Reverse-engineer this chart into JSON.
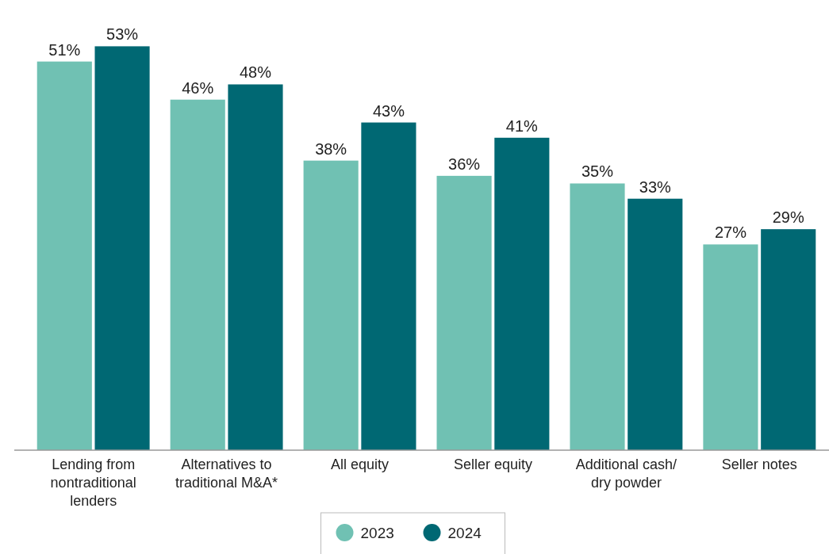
{
  "chart_data": {
    "type": "bar",
    "categories": [
      "Lending from nontraditional lenders",
      "Alternatives to traditional M&A*",
      "All equity",
      "Seller equity",
      "Additional cash/ dry powder",
      "Seller notes"
    ],
    "series": [
      {
        "name": "2023",
        "color": "#70c1b3",
        "values": [
          51,
          46,
          38,
          36,
          35,
          27
        ],
        "value_labels": [
          "51%",
          "46%",
          "38%",
          "36%",
          "35%",
          "27%"
        ]
      },
      {
        "name": "2024",
        "color": "#006873",
        "values": [
          53,
          48,
          43,
          41,
          33,
          29
        ],
        "value_labels": [
          "53%",
          "48%",
          "43%",
          "41%",
          "33%",
          "29%"
        ]
      }
    ],
    "legend": "bottom"
  }
}
